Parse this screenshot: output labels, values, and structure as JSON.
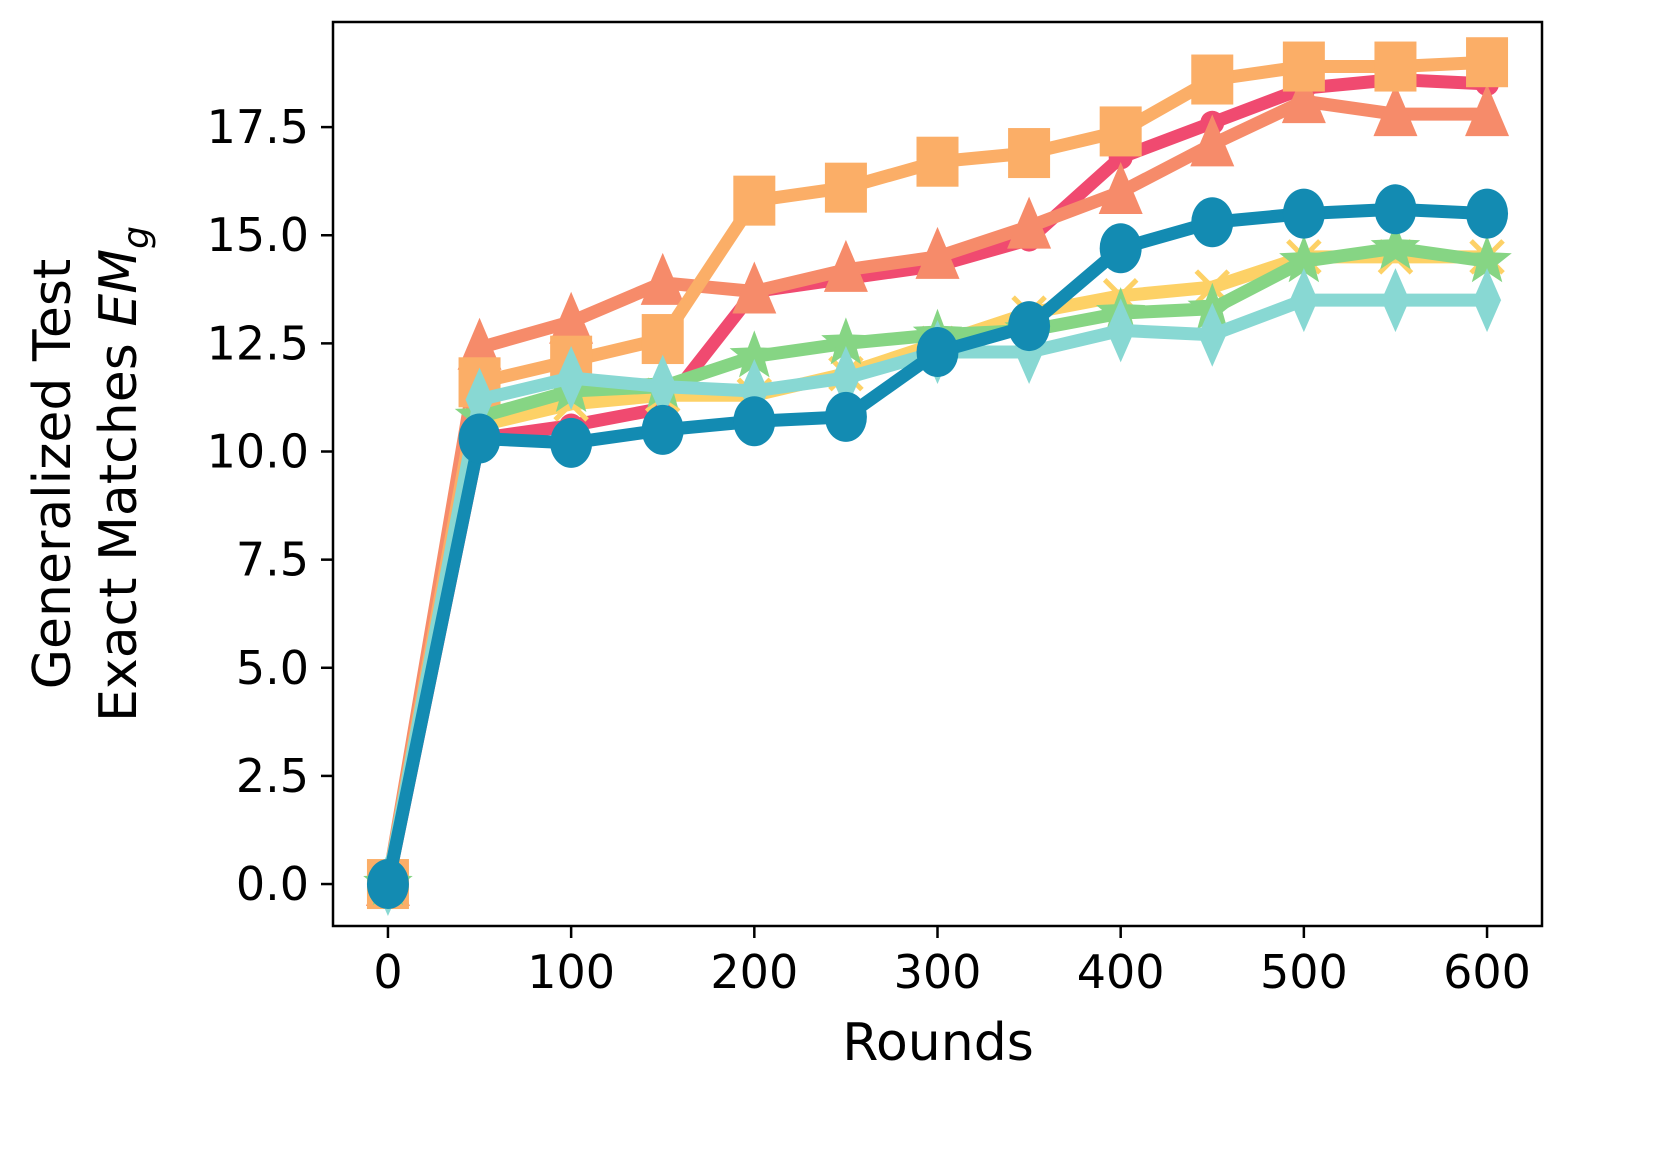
{
  "chart_data": {
    "type": "line",
    "title": "",
    "xlabel": "Rounds",
    "ylabel_line1": "Generalized Test",
    "ylabel_line2": "Exact Matches ",
    "ylabel_math": "EM",
    "ylabel_sub": "g",
    "xlim": [
      -30,
      630
    ],
    "ylim": [
      -0.97,
      19.93
    ],
    "xticks": [
      0,
      100,
      200,
      300,
      400,
      500,
      600
    ],
    "xtick_labels": [
      "0",
      "100",
      "200",
      "300",
      "400",
      "500",
      "600"
    ],
    "yticks": [
      0,
      2.5,
      5,
      7.5,
      10,
      12.5,
      15,
      17.5
    ],
    "ytick_labels": [
      "0.0",
      "2.5",
      "5.0",
      "7.5",
      "10.0",
      "12.5",
      "15.0",
      "17.5"
    ],
    "grid": false,
    "legend": "none",
    "x": [
      0,
      50,
      100,
      150,
      200,
      250,
      300,
      350,
      400,
      450,
      500,
      550,
      600
    ],
    "series": [
      {
        "color": "#f04a70",
        "marker": "circle-small",
        "values": [
          0,
          10.3,
          10.6,
          11.0,
          13.7,
          14.0,
          14.3,
          14.9,
          16.8,
          17.6,
          18.4,
          18.6,
          18.5
        ]
      },
      {
        "color": "#f68b6a",
        "marker": "triangle",
        "values": [
          0,
          12.4,
          13.0,
          13.9,
          13.7,
          14.2,
          14.5,
          15.2,
          16.0,
          17.1,
          18.1,
          17.8,
          17.8
        ]
      },
      {
        "color": "#fbae67",
        "marker": "square",
        "values": [
          0,
          11.6,
          12.1,
          12.6,
          15.8,
          16.1,
          16.7,
          16.9,
          17.4,
          18.6,
          18.9,
          18.9,
          19.0
        ]
      },
      {
        "color": "#fdd166",
        "marker": "x",
        "values": [
          0,
          10.6,
          11.1,
          11.3,
          11.3,
          11.8,
          12.5,
          13.2,
          13.6,
          13.8,
          14.5,
          14.5,
          14.5
        ]
      },
      {
        "color": "#86d584",
        "marker": "star",
        "values": [
          0,
          10.8,
          11.4,
          11.5,
          12.2,
          12.5,
          12.7,
          12.8,
          13.2,
          13.3,
          14.4,
          14.7,
          14.4
        ]
      },
      {
        "color": "#88d8d3",
        "marker": "diamond",
        "values": [
          0,
          11.2,
          11.7,
          11.5,
          11.4,
          11.7,
          12.3,
          12.3,
          12.8,
          12.7,
          13.5,
          13.5,
          13.5
        ]
      },
      {
        "color": "#138bb2",
        "marker": "circle",
        "values": [
          0,
          10.3,
          10.2,
          10.5,
          10.7,
          10.8,
          12.3,
          12.9,
          14.7,
          15.3,
          15.5,
          15.6,
          15.5
        ]
      }
    ]
  }
}
